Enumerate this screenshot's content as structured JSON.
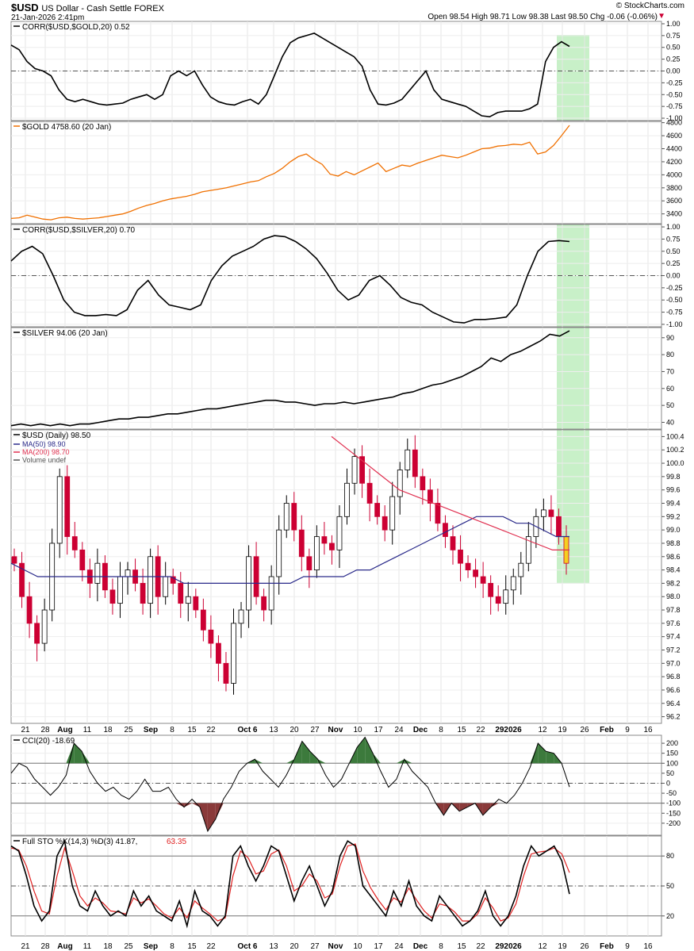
{
  "header": {
    "symbol": "$USD",
    "name": "US Dollar - Cash Settle FOREX",
    "date": "21-Jan-2026 2:41pm",
    "watermark": "© StockCharts.com",
    "ohlc_text": "Open 98.54  High 98.71  Low 98.38  Last 98.50  Chg -0.06 (-0.06%)",
    "chg_arrow": "▼"
  },
  "colors": {
    "up_candle": "#ffffff",
    "down_candle": "#cc0033",
    "ma50": "#2a2a8a",
    "ma200": "#e03050",
    "gold": "#f07000",
    "cci_fill": "#3c7a3c",
    "cci_neg_fill": "#8a3a3a",
    "sto_k": "#000000",
    "sto_d": "#e02020",
    "highlight": "#c8f0c8"
  },
  "chart_data": [
    {
      "type": "line",
      "title": "CORR($USD,$GOLD,20) 0.52",
      "ylim": [
        -1.05,
        1.05
      ],
      "yticks": [
        "1.00",
        "0.75",
        "0.50",
        "0.25",
        "0.00",
        "-0.25",
        "-0.50",
        "-0.75",
        "-1.00"
      ],
      "values": [
        0.55,
        0.45,
        0.2,
        0.05,
        0.0,
        -0.1,
        -0.4,
        -0.6,
        -0.65,
        -0.6,
        -0.65,
        -0.7,
        -0.72,
        -0.7,
        -0.68,
        -0.6,
        -0.55,
        -0.5,
        -0.6,
        -0.5,
        -0.1,
        0.0,
        -0.1,
        0.0,
        -0.3,
        -0.55,
        -0.65,
        -0.7,
        -0.72,
        -0.65,
        -0.6,
        -0.7,
        -0.5,
        -0.1,
        0.3,
        0.6,
        0.7,
        0.75,
        0.8,
        0.7,
        0.6,
        0.5,
        0.4,
        0.3,
        0.1,
        -0.4,
        -0.7,
        -0.72,
        -0.68,
        -0.6,
        -0.4,
        -0.2,
        0.0,
        -0.4,
        -0.6,
        -0.65,
        -0.7,
        -0.75,
        -0.85,
        -0.95,
        -0.97,
        -0.88,
        -0.85,
        -0.85,
        -0.85,
        -0.8,
        -0.7,
        0.2,
        0.5,
        0.62,
        0.52
      ]
    },
    {
      "type": "line",
      "title": "$GOLD 4758.60 (20 Jan)",
      "ylim": [
        3250,
        4820
      ],
      "yticks": [
        "4800",
        "4600",
        "4400",
        "4200",
        "4000",
        "3800",
        "3600",
        "3400"
      ],
      "values": [
        3330,
        3340,
        3380,
        3350,
        3320,
        3310,
        3340,
        3350,
        3330,
        3320,
        3330,
        3340,
        3360,
        3380,
        3400,
        3440,
        3490,
        3530,
        3560,
        3600,
        3630,
        3650,
        3670,
        3700,
        3740,
        3760,
        3780,
        3800,
        3830,
        3860,
        3890,
        3910,
        3970,
        4020,
        4100,
        4200,
        4280,
        4320,
        4230,
        4160,
        4010,
        3980,
        4050,
        4000,
        4060,
        4120,
        4180,
        4050,
        4100,
        4150,
        4130,
        4180,
        4220,
        4260,
        4300,
        4280,
        4260,
        4300,
        4350,
        4400,
        4410,
        4440,
        4450,
        4470,
        4460,
        4500,
        4320,
        4350,
        4450,
        4600,
        4758.6
      ]
    },
    {
      "type": "line",
      "title": "CORR($USD,$SILVER,20) 0.70",
      "ylim": [
        -1.05,
        1.05
      ],
      "yticks": [
        "1.00",
        "0.75",
        "0.50",
        "0.25",
        "0.00",
        "-0.25",
        "-0.50",
        "-0.75",
        "-1.00"
      ],
      "values": [
        0.3,
        0.5,
        0.6,
        0.45,
        0.0,
        -0.5,
        -0.75,
        -0.82,
        -0.82,
        -0.8,
        -0.82,
        -0.7,
        -0.3,
        -0.1,
        -0.4,
        -0.6,
        -0.65,
        -0.7,
        -0.6,
        -0.1,
        0.2,
        0.4,
        0.5,
        0.6,
        0.75,
        0.82,
        0.8,
        0.7,
        0.55,
        0.35,
        0.05,
        -0.3,
        -0.5,
        -0.4,
        -0.1,
        0.0,
        -0.2,
        -0.45,
        -0.55,
        -0.6,
        -0.75,
        -0.85,
        -0.95,
        -0.97,
        -0.9,
        -0.9,
        -0.88,
        -0.85,
        -0.6,
        0.0,
        0.5,
        0.7,
        0.72,
        0.7
      ]
    },
    {
      "type": "line",
      "title": "$SILVER 94.06 (20 Jan)",
      "ylim": [
        36,
        96
      ],
      "yticks": [
        "90",
        "80",
        "70",
        "60",
        "50",
        "40"
      ],
      "values": [
        38,
        39,
        38,
        39,
        38,
        39,
        38,
        39,
        39,
        40,
        41,
        42,
        42,
        43,
        43,
        44,
        45,
        45,
        46,
        47,
        48,
        48,
        49,
        50,
        51,
        52,
        53,
        53,
        52,
        52,
        51,
        50,
        51,
        51,
        52,
        51,
        52,
        53,
        54,
        55,
        57,
        58,
        60,
        62,
        63,
        65,
        67,
        70,
        73,
        78,
        76,
        80,
        82,
        85,
        88,
        92,
        91,
        94.06
      ]
    },
    {
      "type": "candlestick",
      "title": "$USD (Daily) 98.50",
      "legend": [
        "MA(50) 98.90",
        "MA(200) 98.70",
        "Volume undef"
      ],
      "ylim": [
        96.1,
        100.5
      ],
      "yticks": [
        "100.4",
        "100.2",
        "100.0",
        "99.8",
        "99.6",
        "99.4",
        "99.2",
        "99.0",
        "98.8",
        "98.6",
        "98.4",
        "98.2",
        "98.0",
        "97.8",
        "97.6",
        "97.4",
        "97.2",
        "97.0",
        "96.8",
        "96.6",
        "96.4",
        "96.2"
      ],
      "x": [
        "21",
        "28",
        "Aug",
        "11",
        "18",
        "25",
        "Sep",
        "8",
        "15",
        "22",
        "Oct 6",
        "13",
        "20",
        "27",
        "Nov",
        "10",
        "17",
        "24",
        "Dec",
        "8",
        "15",
        "22",
        "292026",
        "12",
        "19",
        "26",
        "Feb",
        "9",
        "16"
      ],
      "closes": [
        98.5,
        98.0,
        97.6,
        97.3,
        97.8,
        98.8,
        99.8,
        98.9,
        98.7,
        98.4,
        98.2,
        98.5,
        98.1,
        97.9,
        98.3,
        98.4,
        98.2,
        97.9,
        98.6,
        98.0,
        98.3,
        98.2,
        97.9,
        98.0,
        97.8,
        97.5,
        97.3,
        97.0,
        96.7,
        97.6,
        97.8,
        98.6,
        98.0,
        97.8,
        98.3,
        99.0,
        99.4,
        99.0,
        98.6,
        98.4,
        98.9,
        98.8,
        98.7,
        99.2,
        99.7,
        100.1,
        99.7,
        99.4,
        99.2,
        99.0,
        99.5,
        99.9,
        100.2,
        99.8,
        99.6,
        99.4,
        99.1,
        98.9,
        98.7,
        98.5,
        98.4,
        98.3,
        98.2,
        98.0,
        97.9,
        98.1,
        98.3,
        98.5,
        98.9,
        99.2,
        99.3,
        99.2,
        98.9,
        98.5
      ],
      "ma50": [
        98.5,
        98.4,
        98.3,
        98.3,
        98.3,
        98.3,
        98.3,
        98.3,
        98.3,
        98.3,
        98.3,
        98.3,
        98.3,
        98.2,
        98.2,
        98.2,
        98.2,
        98.2,
        98.2,
        98.2,
        98.2,
        98.2,
        98.3,
        98.3,
        98.3,
        98.3,
        98.4,
        98.4,
        98.5,
        98.6,
        98.7,
        98.8,
        98.9,
        99.0,
        99.1,
        99.2,
        99.2,
        99.2,
        99.1,
        99.1,
        99.0,
        98.9,
        98.9
      ],
      "ma200": [
        100.4,
        100.2,
        100.0,
        99.8,
        99.6,
        99.5,
        99.4,
        99.3,
        99.2,
        99.1,
        99.0,
        98.9,
        98.8,
        98.7,
        98.7
      ],
      "highlight_start_label": "19"
    },
    {
      "type": "area",
      "title": "CCI(20) -18.69",
      "ylim": [
        -260,
        240
      ],
      "yticks": [
        "200",
        "150",
        "100",
        "50",
        "0",
        "-50",
        "-100",
        "-150",
        "-200"
      ],
      "values": [
        50,
        100,
        80,
        20,
        -20,
        -60,
        -20,
        40,
        200,
        160,
        60,
        0,
        -40,
        -20,
        -60,
        -80,
        -40,
        20,
        -40,
        -40,
        -20,
        -80,
        -120,
        -80,
        -120,
        -240,
        -180,
        -80,
        -20,
        60,
        100,
        120,
        60,
        20,
        -20,
        40,
        120,
        210,
        160,
        120,
        40,
        -20,
        20,
        100,
        180,
        230,
        150,
        60,
        -20,
        20,
        120,
        60,
        20,
        -20,
        -100,
        -160,
        -100,
        -140,
        -120,
        -100,
        -160,
        -120,
        -80,
        -100,
        -60,
        0,
        80,
        200,
        160,
        150,
        100,
        -18.69
      ]
    },
    {
      "type": "line",
      "title": "Full STO %K(14,3) %D(3) 41.87,",
      "title_d": "63.35",
      "ylim": [
        0,
        100
      ],
      "yticks": [
        "80",
        "50",
        "20"
      ],
      "k": [
        90,
        85,
        60,
        30,
        15,
        25,
        80,
        95,
        50,
        30,
        25,
        45,
        30,
        20,
        25,
        20,
        45,
        30,
        40,
        25,
        20,
        15,
        35,
        10,
        45,
        25,
        20,
        10,
        20,
        80,
        90,
        70,
        55,
        70,
        90,
        85,
        60,
        35,
        55,
        70,
        50,
        30,
        45,
        80,
        95,
        90,
        50,
        40,
        30,
        20,
        45,
        30,
        55,
        30,
        20,
        15,
        40,
        30,
        20,
        10,
        15,
        25,
        45,
        20,
        10,
        20,
        40,
        70,
        90,
        80,
        85,
        90,
        75,
        41.87
      ],
      "d": [
        88,
        86,
        70,
        45,
        25,
        22,
        60,
        88,
        65,
        40,
        30,
        38,
        33,
        25,
        24,
        22,
        38,
        33,
        37,
        30,
        22,
        18,
        28,
        18,
        35,
        28,
        22,
        15,
        18,
        60,
        85,
        78,
        62,
        65,
        82,
        86,
        70,
        45,
        50,
        62,
        55,
        38,
        42,
        70,
        90,
        92,
        65,
        48,
        36,
        26,
        38,
        34,
        48,
        36,
        25,
        18,
        32,
        30,
        24,
        15,
        15,
        22,
        38,
        28,
        15,
        18,
        32,
        60,
        82,
        84,
        85,
        88,
        82,
        63.35
      ]
    }
  ]
}
